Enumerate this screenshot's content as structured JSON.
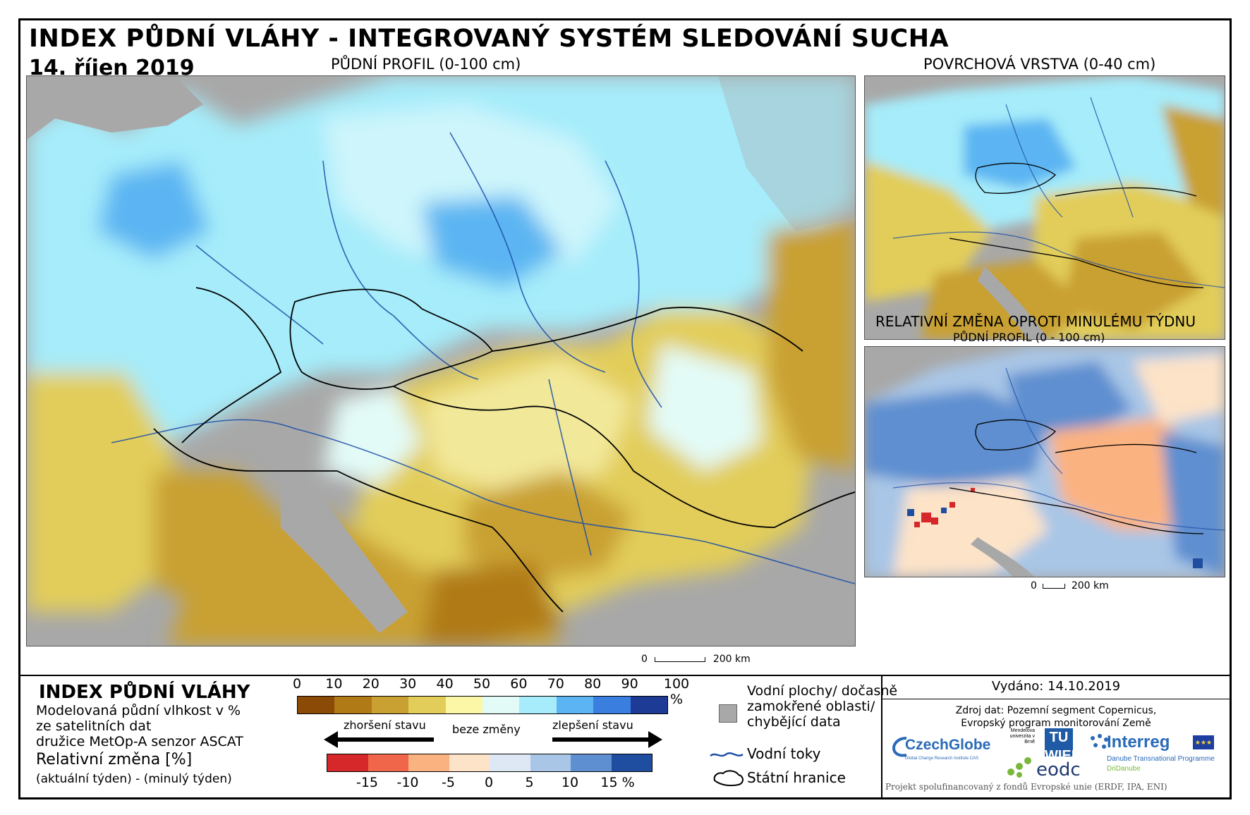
{
  "header": {
    "title": "INDEX PŮDNÍ VLÁHY - INTEGROVANÝ SYSTÉM SLEDOVÁNÍ SUCHA",
    "date": "14. říjen 2019"
  },
  "maps": {
    "main_label": "PŮDNÍ PROFIL (0-100 cm)",
    "surface_label": "POVRCHOVÁ VRSTVA (0-40 cm)",
    "change_label": "RELATIVNÍ ZMĚNA OPROTI MINULÉMU TÝDNU",
    "change_sublabel": "PŮDNÍ PROFIL (0 - 100 cm)",
    "scale_main": {
      "zero": "0",
      "end": "200 km"
    },
    "scale_small": {
      "zero": "0",
      "end": "200 km"
    }
  },
  "legend": {
    "heading": "INDEX PŮDNÍ VLÁHY",
    "desc_lines": [
      "Modelovaná půdní vlhkost v %",
      "ze satelitních dat",
      "družice MetOp-A senzor ASCAT"
    ],
    "change_heading": "Relativní změna [%]",
    "change_desc": "(aktuální týden) - (minulý týden)",
    "index_ticks": [
      "0",
      "10",
      "20",
      "30",
      "40",
      "50",
      "60",
      "70",
      "80",
      "90",
      "100 %"
    ],
    "index_colors": [
      "#8c4a07",
      "#b07a16",
      "#c9a032",
      "#e2cd5a",
      "#fbf7a6",
      "#e3fbf7",
      "#a6ecfa",
      "#5cb5f2",
      "#3a7ee0",
      "#1d3a94"
    ],
    "change_ticks": [
      "-15",
      "-10",
      "-5",
      "0",
      "5",
      "10",
      "15 %"
    ],
    "change_colors": [
      "#d6282a",
      "#f0664b",
      "#fbb281",
      "#fde3c8",
      "#dde8f4",
      "#a9c6e6",
      "#5e8fd0",
      "#1f4ea0"
    ],
    "worse_label": "zhoršení stavu",
    "nochange_label": "beze změny",
    "better_label": "zlepšení stavu",
    "water_label_lines": [
      "Vodní plochy/ dočasně",
      "zamokřené oblasti/",
      "chybějící data"
    ],
    "rivers_label": "Vodní toky",
    "borders_label": "Státní hranice"
  },
  "info": {
    "issued": "Vydáno: 14.10.2019",
    "source_lines": [
      "Zdroj dat: Pozemní segment Copernicus,",
      "Evropský program monitorování Země"
    ],
    "logos": {
      "czechglobe": "CzechGlobe",
      "czechglobe_sub": "Global Change Research Institute CAS",
      "mendel": "Mendelova univerzita v Brně",
      "tuwien": "TU WIEN",
      "eodc": "eodc",
      "interreg": "Interreg",
      "interreg_sub1": "Danube Transnational Programme",
      "interreg_sub2": "DriDanube"
    },
    "footer": "Projekt spolufinancovaný z fondů Evropské unie (ERDF, IPA, ENI)"
  }
}
